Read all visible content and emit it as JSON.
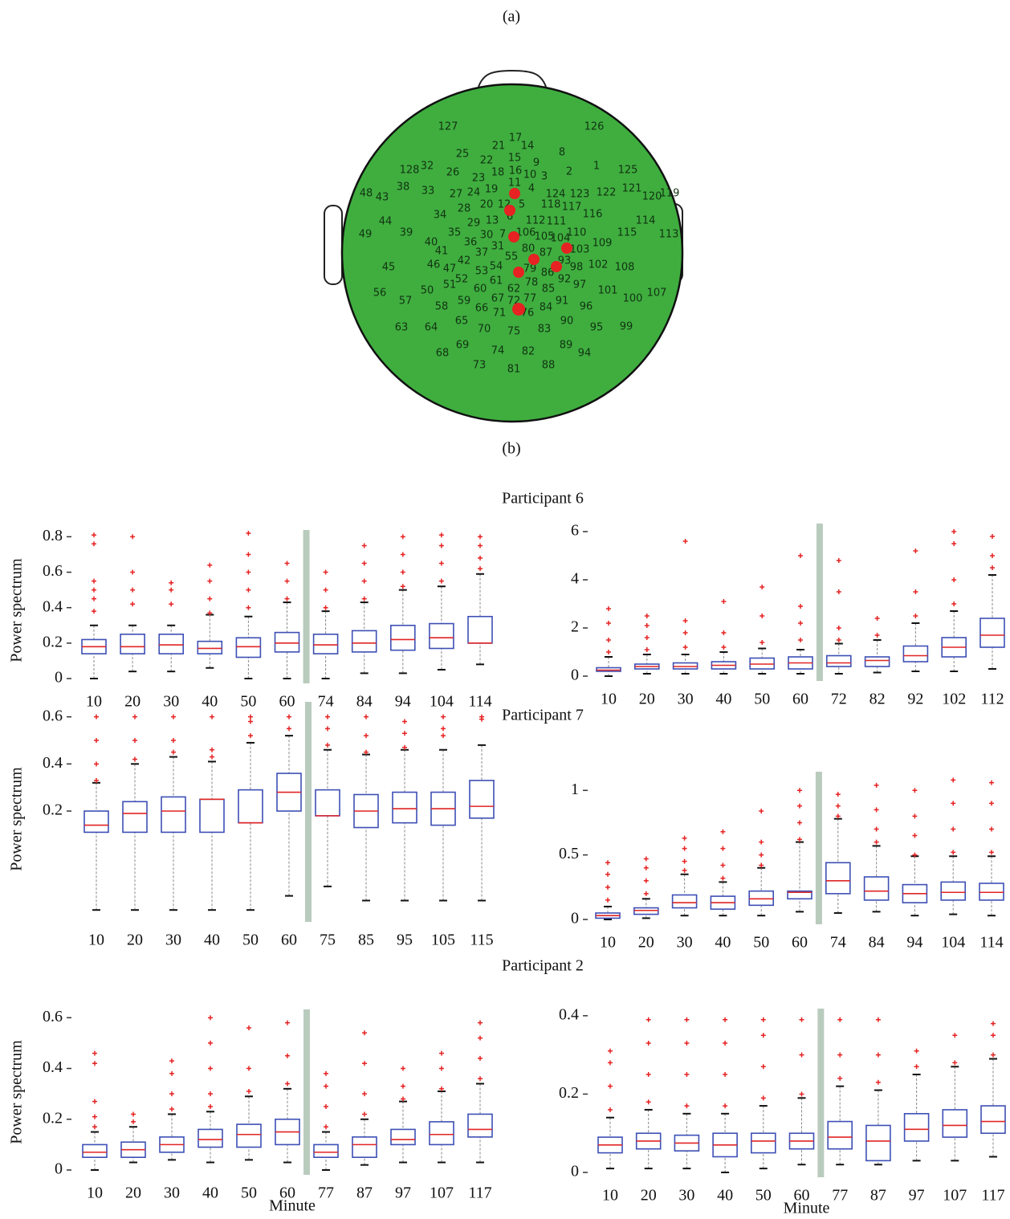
{
  "panel_labels": [
    "(a)",
    "(b)"
  ],
  "head_map": {
    "electrodes": [
      127,
      126,
      17,
      21,
      14,
      8,
      25,
      22,
      15,
      9,
      1,
      125,
      128,
      32,
      26,
      23,
      18,
      16,
      10,
      3,
      2,
      48,
      43,
      38,
      33,
      27,
      24,
      19,
      11,
      4,
      124,
      123,
      122,
      121,
      120,
      119,
      20,
      12,
      5,
      28,
      118,
      117,
      116,
      34,
      29,
      13,
      6,
      112,
      111,
      114,
      44,
      49,
      39,
      35,
      30,
      7,
      106,
      105,
      104,
      110,
      115,
      113,
      40,
      41,
      36,
      31,
      37,
      80,
      87,
      103,
      109,
      42,
      55,
      54,
      93,
      45,
      46,
      47,
      53,
      79,
      86,
      98,
      102,
      108,
      52,
      61,
      78,
      92,
      97,
      51,
      50,
      56,
      60,
      62,
      85,
      101,
      100,
      107,
      57,
      59,
      67,
      72,
      77,
      91,
      96,
      58,
      66,
      71,
      76,
      84,
      65,
      90,
      95,
      99,
      63,
      64,
      70,
      75,
      83,
      69,
      89,
      94,
      68,
      74,
      82,
      73,
      81,
      88
    ]
  },
  "row_titles": [
    "Participant 6",
    "Participant 7",
    "Participant 2"
  ],
  "chart_data": [
    {
      "type": "box",
      "ylabel": "Power spectrum",
      "categories": [
        10,
        20,
        30,
        40,
        50,
        60,
        74,
        84,
        94,
        104,
        114
      ],
      "ylim": [
        0,
        0.82
      ],
      "yticks": [
        0,
        0.2,
        0.4,
        0.6,
        0.8
      ],
      "boxes": [
        {
          "whislo": 0,
          "q1": 0.14,
          "med": 0.18,
          "q3": 0.22,
          "whishi": 0.3,
          "fliers": [
            0.38,
            0.45,
            0.5,
            0.55,
            0.76,
            0.81
          ]
        },
        {
          "whislo": 0.04,
          "q1": 0.14,
          "med": 0.18,
          "q3": 0.25,
          "whishi": 0.3,
          "fliers": [
            0.42,
            0.5,
            0.6,
            0.8
          ]
        },
        {
          "whislo": 0.04,
          "q1": 0.14,
          "med": 0.19,
          "q3": 0.25,
          "whishi": 0.3,
          "fliers": [
            0.42,
            0.5,
            0.54
          ]
        },
        {
          "whislo": 0.06,
          "q1": 0.14,
          "med": 0.17,
          "q3": 0.21,
          "whishi": 0.36,
          "fliers": [
            0.37,
            0.45,
            0.55,
            0.64
          ]
        },
        {
          "whislo": 0,
          "q1": 0.12,
          "med": 0.18,
          "q3": 0.23,
          "whishi": 0.35,
          "fliers": [
            0.4,
            0.5,
            0.6,
            0.7,
            0.82
          ]
        },
        {
          "whislo": 0,
          "q1": 0.15,
          "med": 0.2,
          "q3": 0.26,
          "whishi": 0.43,
          "fliers": [
            0.45,
            0.55,
            0.65
          ]
        },
        {
          "whislo": 0,
          "q1": 0.14,
          "med": 0.19,
          "q3": 0.25,
          "whishi": 0.38,
          "fliers": [
            0.4,
            0.5,
            0.6
          ]
        },
        {
          "whislo": 0.03,
          "q1": 0.15,
          "med": 0.2,
          "q3": 0.27,
          "whishi": 0.43,
          "fliers": [
            0.45,
            0.55,
            0.65,
            0.75
          ]
        },
        {
          "whislo": 0.03,
          "q1": 0.16,
          "med": 0.22,
          "q3": 0.3,
          "whishi": 0.5,
          "fliers": [
            0.52,
            0.6,
            0.7,
            0.8
          ]
        },
        {
          "whislo": 0.05,
          "q1": 0.17,
          "med": 0.23,
          "q3": 0.31,
          "whishi": 0.52,
          "fliers": [
            0.55,
            0.65,
            0.75,
            0.81
          ]
        },
        {
          "whislo": 0.08,
          "q1": 0.2,
          "med": 0.2,
          "q3": 0.35,
          "whishi": 0.59,
          "fliers": [
            0.62,
            0.68,
            0.75,
            0.8
          ]
        }
      ]
    },
    {
      "type": "box",
      "categories": [
        10,
        20,
        30,
        40,
        50,
        60,
        72,
        82,
        92,
        102,
        112
      ],
      "ylim": [
        0,
        6.2
      ],
      "yticks": [
        0,
        2,
        4,
        6
      ],
      "boxes": [
        {
          "whislo": 0,
          "q1": 0.2,
          "med": 0.25,
          "q3": 0.35,
          "whishi": 0.8,
          "fliers": [
            1,
            1.5,
            2.2,
            2.8
          ]
        },
        {
          "whislo": 0.1,
          "q1": 0.3,
          "med": 0.4,
          "q3": 0.5,
          "whishi": 0.9,
          "fliers": [
            1.1,
            1.6,
            2.1,
            2.5
          ]
        },
        {
          "whislo": 0.1,
          "q1": 0.3,
          "med": 0.4,
          "q3": 0.55,
          "whishi": 0.9,
          "fliers": [
            1.2,
            1.8,
            2.3,
            5.6
          ]
        },
        {
          "whislo": 0.1,
          "q1": 0.3,
          "med": 0.45,
          "q3": 0.6,
          "whishi": 1.0,
          "fliers": [
            1.2,
            1.8,
            3.1
          ]
        },
        {
          "whislo": 0.1,
          "q1": 0.3,
          "med": 0.5,
          "q3": 0.75,
          "whishi": 1.15,
          "fliers": [
            1.4,
            2.5,
            3.7
          ]
        },
        {
          "whislo": 0.1,
          "q1": 0.3,
          "med": 0.55,
          "q3": 0.8,
          "whishi": 1.1,
          "fliers": [
            1.5,
            2.2,
            2.9,
            5.0
          ]
        },
        {
          "whislo": 0.1,
          "q1": 0.4,
          "med": 0.55,
          "q3": 0.85,
          "whishi": 1.35,
          "fliers": [
            1.5,
            2,
            3.5,
            4.8
          ]
        },
        {
          "whislo": 0.15,
          "q1": 0.4,
          "med": 0.65,
          "q3": 0.8,
          "whishi": 1.5,
          "fliers": [
            1.7,
            2.4
          ]
        },
        {
          "whislo": 0.2,
          "q1": 0.6,
          "med": 0.85,
          "q3": 1.25,
          "whishi": 2.2,
          "fliers": [
            2.5,
            3.5,
            5.2
          ]
        },
        {
          "whislo": 0.2,
          "q1": 0.8,
          "med": 1.2,
          "q3": 1.6,
          "whishi": 2.7,
          "fliers": [
            3,
            4,
            5.5,
            6
          ]
        },
        {
          "whislo": 0.3,
          "q1": 1.2,
          "med": 1.7,
          "q3": 2.4,
          "whishi": 4.2,
          "fliers": [
            4.5,
            5,
            5.8
          ]
        }
      ]
    },
    {
      "type": "box",
      "ylabel": "Power spectrum",
      "categories": [
        10,
        20,
        30,
        40,
        50,
        60,
        75,
        85,
        95,
        105,
        115
      ],
      "ylim": [
        -0.25,
        0.65
      ],
      "yticks": [
        0.2,
        0.4,
        0.6
      ],
      "boxes": [
        {
          "whislo": -0.22,
          "q1": 0.11,
          "med": 0.14,
          "q3": 0.2,
          "whishi": 0.32,
          "fliers": [
            0.33,
            0.4,
            0.5,
            0.6
          ]
        },
        {
          "whislo": -0.22,
          "q1": 0.11,
          "med": 0.19,
          "q3": 0.24,
          "whishi": 0.4,
          "fliers": [
            0.42,
            0.5,
            0.6
          ]
        },
        {
          "whislo": -0.22,
          "q1": 0.11,
          "med": 0.2,
          "q3": 0.26,
          "whishi": 0.43,
          "fliers": [
            0.45,
            0.5,
            0.6
          ]
        },
        {
          "whislo": -0.22,
          "q1": 0.11,
          "med": 0.25,
          "q3": 0.25,
          "whishi": 0.41,
          "fliers": [
            0.43,
            0.46,
            0.6
          ]
        },
        {
          "whislo": -0.22,
          "q1": 0.15,
          "med": 0.15,
          "q3": 0.29,
          "whishi": 0.49,
          "fliers": [
            0.52,
            0.58,
            0.6
          ]
        },
        {
          "whislo": -0.16,
          "q1": 0.2,
          "med": 0.28,
          "q3": 0.36,
          "whishi": 0.52,
          "fliers": [
            0.55,
            0.6
          ]
        },
        {
          "whislo": -0.12,
          "q1": 0.18,
          "med": 0.18,
          "q3": 0.29,
          "whishi": 0.46,
          "fliers": [
            0.48,
            0.55,
            0.6
          ]
        },
        {
          "whislo": -0.18,
          "q1": 0.13,
          "med": 0.2,
          "q3": 0.27,
          "whishi": 0.44,
          "fliers": [
            0.45,
            0.52,
            0.6
          ]
        },
        {
          "whislo": -0.18,
          "q1": 0.15,
          "med": 0.21,
          "q3": 0.28,
          "whishi": 0.46,
          "fliers": [
            0.47,
            0.53,
            0.58
          ]
        },
        {
          "whislo": -0.18,
          "q1": 0.14,
          "med": 0.21,
          "q3": 0.28,
          "whishi": 0.46,
          "fliers": [
            0.52,
            0.55,
            0.6
          ]
        },
        {
          "whislo": -0.18,
          "q1": 0.17,
          "med": 0.22,
          "q3": 0.33,
          "whishi": 0.48,
          "fliers": [
            0.59,
            0.6
          ]
        }
      ]
    },
    {
      "type": "box",
      "categories": [
        10,
        20,
        30,
        40,
        50,
        60,
        74,
        84,
        94,
        104,
        114
      ],
      "ylim": [
        0,
        1.12
      ],
      "yticks": [
        0,
        0.5,
        1
      ],
      "boxes": [
        {
          "whislo": 0,
          "q1": 0.01,
          "med": 0.03,
          "q3": 0.05,
          "whishi": 0.1,
          "fliers": [
            0.15,
            0.25,
            0.35,
            0.44
          ]
        },
        {
          "whislo": 0.01,
          "q1": 0.04,
          "med": 0.07,
          "q3": 0.09,
          "whishi": 0.16,
          "fliers": [
            0.2,
            0.3,
            0.4,
            0.47
          ]
        },
        {
          "whislo": 0.03,
          "q1": 0.09,
          "med": 0.13,
          "q3": 0.19,
          "whishi": 0.35,
          "fliers": [
            0.38,
            0.45,
            0.55,
            0.63
          ]
        },
        {
          "whislo": 0.03,
          "q1": 0.08,
          "med": 0.13,
          "q3": 0.18,
          "whishi": 0.29,
          "fliers": [
            0.32,
            0.42,
            0.55,
            0.68
          ]
        },
        {
          "whislo": 0.03,
          "q1": 0.11,
          "med": 0.16,
          "q3": 0.22,
          "whishi": 0.4,
          "fliers": [
            0.42,
            0.5,
            0.6,
            0.84
          ]
        },
        {
          "whislo": 0.06,
          "q1": 0.16,
          "med": 0.21,
          "q3": 0.22,
          "whishi": 0.6,
          "fliers": [
            0.62,
            0.75,
            0.88,
            1.0
          ]
        },
        {
          "whislo": 0.05,
          "q1": 0.2,
          "med": 0.3,
          "q3": 0.44,
          "whishi": 0.78,
          "fliers": [
            0.8,
            0.88,
            0.97
          ]
        },
        {
          "whislo": 0.06,
          "q1": 0.15,
          "med": 0.22,
          "q3": 0.33,
          "whishi": 0.57,
          "fliers": [
            0.6,
            0.7,
            0.85,
            1.04
          ]
        },
        {
          "whislo": 0.03,
          "q1": 0.13,
          "med": 0.2,
          "q3": 0.27,
          "whishi": 0.49,
          "fliers": [
            0.5,
            0.65,
            0.8,
            1.0
          ]
        },
        {
          "whislo": 0.04,
          "q1": 0.15,
          "med": 0.21,
          "q3": 0.29,
          "whishi": 0.49,
          "fliers": [
            0.52,
            0.7,
            0.9,
            1.08
          ]
        },
        {
          "whislo": 0.03,
          "q1": 0.15,
          "med": 0.21,
          "q3": 0.28,
          "whishi": 0.49,
          "fliers": [
            0.52,
            0.7,
            0.9,
            1.06
          ]
        }
      ]
    },
    {
      "type": "box",
      "ylabel": "Power spectrum",
      "xlabel": "Minute",
      "categories": [
        10,
        20,
        30,
        40,
        50,
        60,
        77,
        87,
        97,
        107,
        117
      ],
      "ylim": [
        0,
        0.62
      ],
      "yticks": [
        0,
        0.2,
        0.4,
        0.6
      ],
      "boxes": [
        {
          "whislo": 0,
          "q1": 0.05,
          "med": 0.07,
          "q3": 0.1,
          "whishi": 0.15,
          "fliers": [
            0.17,
            0.21,
            0.27,
            0.42,
            0.46
          ]
        },
        {
          "whislo": 0.03,
          "q1": 0.05,
          "med": 0.08,
          "q3": 0.11,
          "whishi": 0.17,
          "fliers": [
            0.19,
            0.22
          ]
        },
        {
          "whislo": 0.04,
          "q1": 0.07,
          "med": 0.1,
          "q3": 0.13,
          "whishi": 0.22,
          "fliers": [
            0.24,
            0.3,
            0.38,
            0.43
          ]
        },
        {
          "whislo": 0.03,
          "q1": 0.09,
          "med": 0.12,
          "q3": 0.16,
          "whishi": 0.23,
          "fliers": [
            0.25,
            0.3,
            0.4,
            0.5,
            0.6
          ]
        },
        {
          "whislo": 0.04,
          "q1": 0.09,
          "med": 0.14,
          "q3": 0.18,
          "whishi": 0.29,
          "fliers": [
            0.31,
            0.4,
            0.56
          ]
        },
        {
          "whislo": 0.03,
          "q1": 0.1,
          "med": 0.15,
          "q3": 0.2,
          "whishi": 0.32,
          "fliers": [
            0.34,
            0.45,
            0.58
          ]
        },
        {
          "whislo": 0,
          "q1": 0.05,
          "med": 0.07,
          "q3": 0.1,
          "whishi": 0.15,
          "fliers": [
            0.17,
            0.25,
            0.33,
            0.38
          ]
        },
        {
          "whislo": 0.02,
          "q1": 0.05,
          "med": 0.1,
          "q3": 0.13,
          "whishi": 0.2,
          "fliers": [
            0.22,
            0.3,
            0.42,
            0.54
          ]
        },
        {
          "whislo": 0.03,
          "q1": 0.1,
          "med": 0.12,
          "q3": 0.16,
          "whishi": 0.27,
          "fliers": [
            0.28,
            0.33,
            0.4
          ]
        },
        {
          "whislo": 0.03,
          "q1": 0.1,
          "med": 0.14,
          "q3": 0.19,
          "whishi": 0.31,
          "fliers": [
            0.32,
            0.4,
            0.46
          ]
        },
        {
          "whislo": 0.03,
          "q1": 0.13,
          "med": 0.16,
          "q3": 0.22,
          "whishi": 0.34,
          "fliers": [
            0.36,
            0.44,
            0.52,
            0.58
          ]
        }
      ]
    },
    {
      "type": "box",
      "xlabel": "Minute",
      "categories": [
        10,
        20,
        30,
        40,
        50,
        60,
        77,
        87,
        97,
        107,
        117
      ],
      "ylim": [
        0,
        0.41
      ],
      "yticks": [
        0,
        0.2,
        0.4
      ],
      "boxes": [
        {
          "whislo": 0.01,
          "q1": 0.05,
          "med": 0.07,
          "q3": 0.09,
          "whishi": 0.14,
          "fliers": [
            0.16,
            0.22,
            0.28,
            0.31
          ]
        },
        {
          "whislo": 0.01,
          "q1": 0.06,
          "med": 0.08,
          "q3": 0.1,
          "whishi": 0.16,
          "fliers": [
            0.18,
            0.25,
            0.33,
            0.39
          ]
        },
        {
          "whislo": 0.01,
          "q1": 0.055,
          "med": 0.075,
          "q3": 0.095,
          "whishi": 0.15,
          "fliers": [
            0.17,
            0.25,
            0.33,
            0.39
          ]
        },
        {
          "whislo": 0,
          "q1": 0.04,
          "med": 0.07,
          "q3": 0.1,
          "whishi": 0.15,
          "fliers": [
            0.17,
            0.25,
            0.33,
            0.39
          ]
        },
        {
          "whislo": 0.01,
          "q1": 0.05,
          "med": 0.08,
          "q3": 0.1,
          "whishi": 0.17,
          "fliers": [
            0.19,
            0.27,
            0.35,
            0.39
          ]
        },
        {
          "whislo": 0.02,
          "q1": 0.06,
          "med": 0.08,
          "q3": 0.1,
          "whishi": 0.19,
          "fliers": [
            0.2,
            0.3,
            0.39
          ]
        },
        {
          "whislo": 0.02,
          "q1": 0.06,
          "med": 0.09,
          "q3": 0.13,
          "whishi": 0.22,
          "fliers": [
            0.24,
            0.3,
            0.39
          ]
        },
        {
          "whislo": 0.02,
          "q1": 0.03,
          "med": 0.08,
          "q3": 0.12,
          "whishi": 0.21,
          "fliers": [
            0.23,
            0.3,
            0.39
          ]
        },
        {
          "whislo": 0.03,
          "q1": 0.08,
          "med": 0.11,
          "q3": 0.15,
          "whishi": 0.25,
          "fliers": [
            0.27,
            0.31
          ]
        },
        {
          "whislo": 0.03,
          "q1": 0.09,
          "med": 0.12,
          "q3": 0.16,
          "whishi": 0.27,
          "fliers": [
            0.28,
            0.35
          ]
        },
        {
          "whislo": 0.04,
          "q1": 0.1,
          "med": 0.13,
          "q3": 0.17,
          "whishi": 0.29,
          "fliers": [
            0.3,
            0.35,
            0.38
          ]
        }
      ]
    }
  ]
}
